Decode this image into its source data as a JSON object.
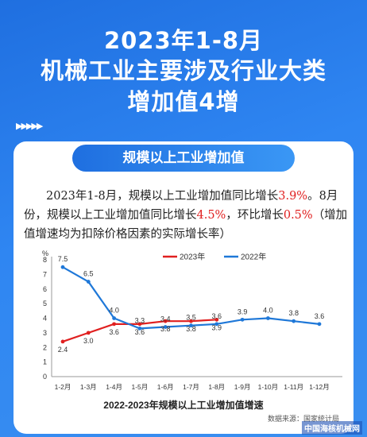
{
  "headline": {
    "line1": "2023年1-8月",
    "line2": "机械工业主要涉及行业大类",
    "line3": "增加值4增"
  },
  "decor": {
    "arrows": "▶▶▶▶▶"
  },
  "panel": {
    "title": "规模以上工业增加值",
    "text": {
      "p1": "2023年1-8月，规模以上工业增加值同比增长",
      "v1": "3.9%",
      "p2": "。8月份，规模以上工业增加值同比增长",
      "v2": "4.5%",
      "p3": "，环比增长",
      "v3": "0.5%",
      "p4": "（增加值增速均为扣除价格因素的实际增长率）"
    },
    "source": "数据来源：国家统计局"
  },
  "footer": "中国海核机械网",
  "colors": {
    "series2023": "#e02020",
    "series2022": "#1f78d8",
    "accent": "#2a7fe8"
  },
  "chart_data": {
    "type": "line",
    "title": "2022-2023年规模以上工业增加值增速",
    "ylabel": "%",
    "ylim": [
      0,
      8
    ],
    "yticks": [
      0,
      1,
      2,
      3,
      4,
      5,
      6,
      7,
      8
    ],
    "categories": [
      "1-2月",
      "1-3月",
      "1-4月",
      "1-5月",
      "1-6月",
      "1-7月",
      "1-8月",
      "1-9月",
      "1-10月",
      "1-11月",
      "1-12月"
    ],
    "legend_position": "top",
    "grid": false,
    "series": [
      {
        "name": "2023年",
        "color": "#e02020",
        "values": [
          2.4,
          3.0,
          3.6,
          3.6,
          3.8,
          3.8,
          3.9,
          null,
          null,
          null,
          null
        ]
      },
      {
        "name": "2022年",
        "color": "#1f78d8",
        "values": [
          7.5,
          6.5,
          4.0,
          3.3,
          3.4,
          3.5,
          3.6,
          3.9,
          4.0,
          3.8,
          3.6
        ]
      }
    ]
  }
}
